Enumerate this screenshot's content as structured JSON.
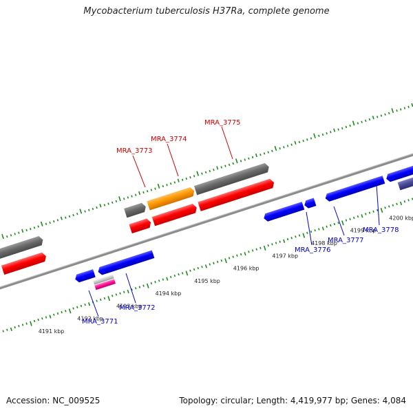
{
  "title": "Mycobacterium tuberculosis H37Ra, complete genome",
  "footer": {
    "accession": "Accession: NC_009525",
    "summary": "Topology: circular; Length: 4,419,977 bp; Genes: 4,084"
  },
  "colors": {
    "forward_label": "#cc0000",
    "reverse_label": "#0000cc",
    "tick": "#1a8a1a",
    "backbone": "#8c8c8c"
  },
  "tick_labels": [
    {
      "kbp": 4191,
      "text": "4191 kbp"
    },
    {
      "kbp": 4192,
      "text": "4192 kbp"
    },
    {
      "kbp": 4193,
      "text": "4193 kbp"
    },
    {
      "kbp": 4194,
      "text": "4194 kbp"
    },
    {
      "kbp": 4195,
      "text": "4195 kbp"
    },
    {
      "kbp": 4196,
      "text": "4196 kbp"
    },
    {
      "kbp": 4197,
      "text": "4197 kbp"
    },
    {
      "kbp": 4198,
      "text": "4198 kbp"
    },
    {
      "kbp": 4199,
      "text": "4199 kbp"
    },
    {
      "kbp": 4200,
      "text": "4200 kbp"
    }
  ],
  "gene_labels": [
    {
      "text": "MRA_3773",
      "strand": "forward"
    },
    {
      "text": "MRA_3774",
      "strand": "forward"
    },
    {
      "text": "MRA_3775",
      "strand": "forward"
    },
    {
      "text": "MRA_3771",
      "strand": "reverse"
    },
    {
      "text": "MRA_3772",
      "strand": "reverse"
    },
    {
      "text": "MRA_3776",
      "strand": "reverse"
    },
    {
      "text": "MRA_3777",
      "strand": "reverse"
    },
    {
      "text": "MRA_3778",
      "strand": "reverse"
    }
  ]
}
